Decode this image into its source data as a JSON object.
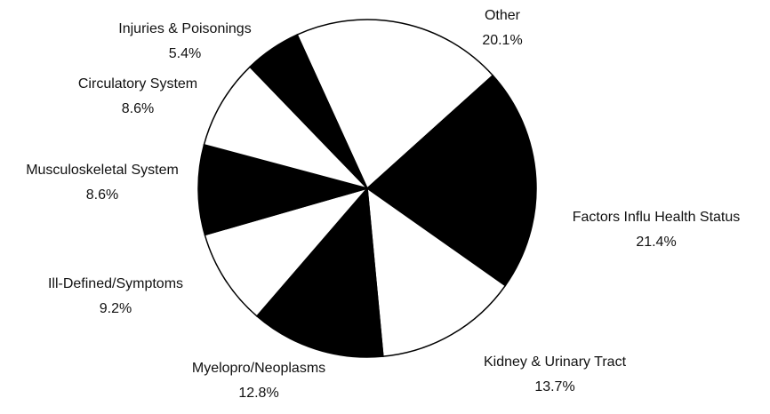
{
  "chart_data": {
    "type": "pie",
    "categories": [
      "Other",
      "Factors Influ Health Status",
      "Kidney & Urinary Tract",
      "Myelopro/Neoplasms",
      "Ill-Defined/Symptoms",
      "Musculoskeletal System",
      "Circulatory System",
      "Injuries & Poisonings"
    ],
    "values": [
      20.1,
      21.4,
      13.7,
      12.8,
      9.2,
      8.6,
      8.6,
      5.4
    ],
    "value_labels": [
      "20.1%",
      "21.4%",
      "13.7%",
      "12.8%",
      "9.2%",
      "8.6%",
      "8.6%",
      "5.4%"
    ],
    "colors": [
      "#ffffff",
      "#000000",
      "#ffffff",
      "#000000",
      "#ffffff",
      "#000000",
      "#ffffff",
      "#000000"
    ]
  }
}
